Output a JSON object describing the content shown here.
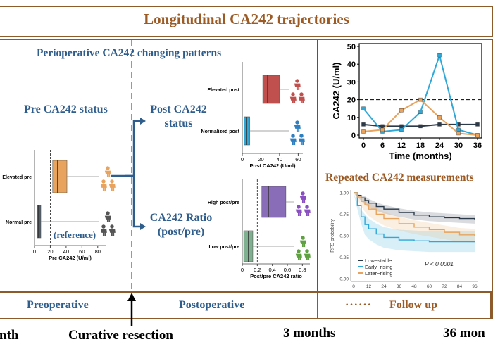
{
  "title": "Longitudinal CA242 trajectories",
  "left_section": {
    "heading": "Perioperative CA242 changing patterns",
    "pre_status": "Pre CA242 status",
    "post_status": "Post CA242 status",
    "ratio_label": "CA242 Ratio (post/pre)",
    "reference": "(reference)"
  },
  "right_section": {
    "repeated_heading": "Repeated CA242 measurements"
  },
  "phases": {
    "preoperative": "Preoperative",
    "postoperative": "Postoperative",
    "dots": "······",
    "follow_up": "Follow up"
  },
  "timeline": {
    "left_cut": "nth",
    "resection": "Curative resection",
    "three_months": "3 months",
    "thirtysix_months": "36 mon"
  },
  "colors": {
    "brown": "#9c5a24",
    "blue": "#2f5d8c",
    "orange": "#e8a45e",
    "slate": "#4f5f6e",
    "red": "#c0504d",
    "cyan": "#2fa8d8",
    "purple": "#8a6db8",
    "green": "#7fb08f"
  },
  "chart_data": [
    {
      "type": "box",
      "id": "pre",
      "xlabel": "Pre CA242 (U/ml)",
      "xticks": [
        0,
        20,
        40,
        60,
        80
      ],
      "xlim": [
        0,
        90
      ],
      "threshold": 20,
      "groups": [
        {
          "name": "Elevated pre",
          "q1": 23,
          "median": 29,
          "q3": 41,
          "color": "#e8a45e",
          "icon_color": "#e8a45e"
        },
        {
          "name": "Normal pre",
          "q1": 3,
          "median": 5,
          "q3": 8,
          "color": "#4f5f6e",
          "icon_color": "#555555"
        }
      ]
    },
    {
      "type": "box",
      "id": "post",
      "xlabel": "Post CA242 (U/ml)",
      "xticks": [
        0,
        20,
        40,
        60
      ],
      "xlim": [
        0,
        65
      ],
      "threshold": 20,
      "groups": [
        {
          "name": "Elevated post",
          "q1": 22,
          "median": 27,
          "q3": 40,
          "color": "#c0504d",
          "icon_color": "#c0504d"
        },
        {
          "name": "Normalized post",
          "q1": 2,
          "median": 5,
          "q3": 8,
          "color": "#2fa8d8",
          "icon_color": "#2f7fc0"
        }
      ]
    },
    {
      "type": "box",
      "id": "ratio",
      "xlabel": "Post/pre CA242 ratio",
      "xticks": [
        0.0,
        0.2,
        0.4,
        0.6,
        0.8
      ],
      "xlim": [
        0,
        0.9
      ],
      "threshold": 0.2,
      "groups": [
        {
          "name": "High post/pre",
          "q1": 0.26,
          "median": 0.35,
          "q3": 0.58,
          "color": "#8a6db8",
          "icon_color": "#8a4fc0"
        },
        {
          "name": "Low post/pre",
          "q1": 0.02,
          "median": 0.08,
          "q3": 0.14,
          "color": "#7fb08f",
          "icon_color": "#5fa040"
        }
      ]
    },
    {
      "type": "line",
      "id": "trajectory",
      "xlabel": "Time (months)",
      "ylabel": "CA242 (U/ml)",
      "xticks": [
        0,
        6,
        12,
        18,
        24,
        30,
        36
      ],
      "yticks": [
        0,
        10,
        20,
        30,
        40,
        50
      ],
      "xlim": [
        0,
        36
      ],
      "ylim": [
        0,
        50
      ],
      "threshold": 20,
      "series": [
        {
          "x": [
            0,
            6,
            12,
            18,
            24,
            30,
            36
          ],
          "values": [
            6,
            5,
            5,
            5,
            6,
            6,
            6
          ],
          "color": "#2b3a4a"
        },
        {
          "x": [
            0,
            6,
            12,
            18,
            24,
            30,
            36
          ],
          "values": [
            15,
            2,
            3,
            13,
            45,
            3,
            0
          ],
          "color": "#2fa8d8"
        },
        {
          "x": [
            0,
            6,
            12,
            18,
            24,
            30,
            36
          ],
          "values": [
            2,
            3,
            14,
            20,
            10,
            1,
            0
          ],
          "color": "#e8a45e"
        }
      ]
    },
    {
      "type": "line",
      "id": "km",
      "ylabel": "RFS probability",
      "xticks": [
        0,
        12,
        24,
        36,
        48,
        60,
        72,
        84,
        96
      ],
      "yticks": [
        "0.00",
        "0.25",
        "0.50",
        "0.75",
        "1.00"
      ],
      "xlim": [
        0,
        96
      ],
      "ylim": [
        0,
        1
      ],
      "annotation": "P < 0.0001",
      "series": [
        {
          "name": "Low−stable",
          "color": "#2b3a4a",
          "x": [
            0,
            3,
            6,
            9,
            12,
            18,
            24,
            36,
            48,
            60,
            72,
            84,
            96
          ],
          "values": [
            1.0,
            0.97,
            0.94,
            0.91,
            0.88,
            0.84,
            0.81,
            0.77,
            0.74,
            0.72,
            0.71,
            0.7,
            0.69
          ]
        },
        {
          "name": "Early−rising",
          "color": "#2fa8d8",
          "x": [
            0,
            3,
            6,
            9,
            12,
            18,
            24,
            36,
            48,
            60,
            72,
            84,
            96
          ],
          "values": [
            1.0,
            0.85,
            0.72,
            0.63,
            0.58,
            0.52,
            0.48,
            0.45,
            0.44,
            0.43,
            0.43,
            0.43,
            0.43
          ]
        },
        {
          "name": "Later−rising",
          "color": "#e8a45e",
          "x": [
            0,
            3,
            6,
            9,
            12,
            18,
            24,
            36,
            48,
            60,
            72,
            84,
            96
          ],
          "values": [
            1.0,
            0.95,
            0.9,
            0.86,
            0.81,
            0.75,
            0.7,
            0.64,
            0.6,
            0.57,
            0.54,
            0.51,
            0.5
          ]
        }
      ]
    }
  ]
}
